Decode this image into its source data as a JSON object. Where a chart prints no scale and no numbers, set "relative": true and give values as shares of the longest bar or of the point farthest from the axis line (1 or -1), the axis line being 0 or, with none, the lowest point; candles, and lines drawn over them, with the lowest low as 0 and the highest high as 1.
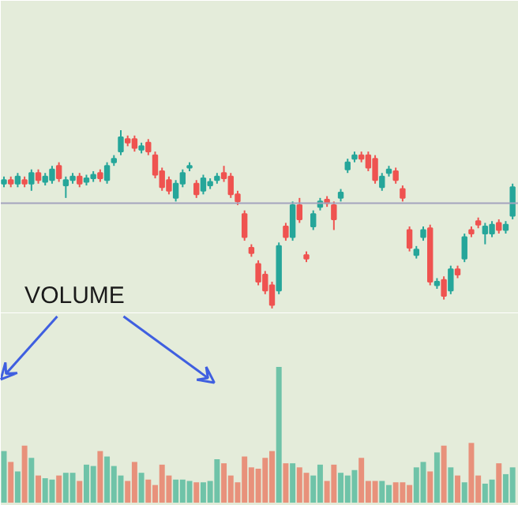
{
  "chart_data": [
    {
      "type": "candlestick",
      "relative": true,
      "categories": [
        null,
        null,
        null,
        null,
        null,
        null,
        null,
        null,
        null,
        null,
        null,
        null,
        null,
        null,
        null,
        null,
        null,
        null,
        null,
        null,
        null,
        null,
        null,
        null,
        null,
        null,
        null,
        null,
        null,
        null,
        null,
        null,
        null,
        null,
        null,
        null,
        null,
        null,
        null,
        null,
        null,
        null,
        null,
        null,
        null,
        null,
        null,
        null,
        null,
        null,
        null,
        null,
        null,
        null,
        null,
        null,
        null,
        null,
        null,
        null,
        null,
        null,
        null,
        null,
        null,
        null,
        null,
        null,
        null,
        null,
        null,
        null,
        null,
        null,
        null
      ],
      "ohlc": [
        [
          0.7,
          0.74,
          0.68,
          0.72
        ],
        [
          0.72,
          0.74,
          0.68,
          0.7
        ],
        [
          0.7,
          0.76,
          0.68,
          0.74
        ],
        [
          0.72,
          0.74,
          0.68,
          0.7
        ],
        [
          0.7,
          0.78,
          0.66,
          0.76
        ],
        [
          0.76,
          0.78,
          0.7,
          0.72
        ],
        [
          0.71,
          0.76,
          0.69,
          0.74
        ],
        [
          0.72,
          0.8,
          0.7,
          0.78
        ],
        [
          0.8,
          0.82,
          0.71,
          0.73
        ],
        [
          0.69,
          0.74,
          0.62,
          0.72
        ],
        [
          0.72,
          0.76,
          0.7,
          0.74
        ],
        [
          0.74,
          0.76,
          0.68,
          0.7
        ],
        [
          0.71,
          0.75,
          0.69,
          0.73
        ],
        [
          0.73,
          0.77,
          0.71,
          0.75
        ],
        [
          0.76,
          0.78,
          0.71,
          0.73
        ],
        [
          0.72,
          0.82,
          0.7,
          0.8
        ],
        [
          0.82,
          0.86,
          0.8,
          0.84
        ],
        [
          0.88,
          1.0,
          0.86,
          0.96
        ],
        [
          0.95,
          0.97,
          0.91,
          0.93
        ],
        [
          0.95,
          0.97,
          0.88,
          0.9
        ],
        [
          0.89,
          0.93,
          0.87,
          0.91
        ],
        [
          0.93,
          0.95,
          0.86,
          0.88
        ],
        [
          0.86,
          0.88,
          0.73,
          0.75
        ],
        [
          0.77,
          0.79,
          0.66,
          0.68
        ],
        [
          0.72,
          0.74,
          0.64,
          0.66
        ],
        [
          0.62,
          0.72,
          0.6,
          0.7
        ],
        [
          0.7,
          0.78,
          0.68,
          0.76
        ],
        [
          0.79,
          0.82,
          0.77,
          0.8
        ],
        [
          0.7,
          0.72,
          0.62,
          0.64
        ],
        [
          0.66,
          0.75,
          0.64,
          0.73
        ],
        [
          0.69,
          0.73,
          0.67,
          0.71
        ],
        [
          0.72,
          0.76,
          0.7,
          0.74
        ],
        [
          0.76,
          0.8,
          0.71,
          0.73
        ],
        [
          0.74,
          0.76,
          0.62,
          0.64
        ],
        [
          0.64,
          0.66,
          0.58,
          0.6
        ],
        [
          0.53,
          0.55,
          0.38,
          0.4
        ],
        [
          0.34,
          0.36,
          0.29,
          0.31
        ],
        [
          0.25,
          0.27,
          0.13,
          0.15
        ],
        [
          0.19,
          0.21,
          0.08,
          0.1
        ],
        [
          0.13,
          0.15,
          0.0,
          0.02
        ],
        [
          0.1,
          0.37,
          0.08,
          0.35
        ],
        [
          0.46,
          0.48,
          0.38,
          0.4
        ],
        [
          0.4,
          0.6,
          0.38,
          0.58
        ],
        [
          0.58,
          0.62,
          0.48,
          0.5
        ],
        [
          0.3,
          0.32,
          0.26,
          0.28
        ],
        [
          0.46,
          0.55,
          0.44,
          0.53
        ],
        [
          0.57,
          0.62,
          0.55,
          0.6
        ],
        [
          0.61,
          0.63,
          0.57,
          0.59
        ],
        [
          0.58,
          0.6,
          0.44,
          0.5
        ],
        [
          0.62,
          0.67,
          0.6,
          0.65
        ],
        [
          0.78,
          0.84,
          0.76,
          0.82
        ],
        [
          0.84,
          0.88,
          0.82,
          0.86
        ],
        [
          0.86,
          0.88,
          0.82,
          0.84
        ],
        [
          0.86,
          0.88,
          0.77,
          0.79
        ],
        [
          0.84,
          0.86,
          0.7,
          0.72
        ],
        [
          0.68,
          0.76,
          0.66,
          0.74
        ],
        [
          0.76,
          0.8,
          0.74,
          0.78
        ],
        [
          0.77,
          0.79,
          0.7,
          0.72
        ],
        [
          0.67,
          0.69,
          0.6,
          0.62
        ],
        [
          0.44,
          0.46,
          0.32,
          0.34
        ],
        [
          0.3,
          0.35,
          0.28,
          0.33
        ],
        [
          0.4,
          0.46,
          0.38,
          0.44
        ],
        [
          0.45,
          0.47,
          0.13,
          0.15
        ],
        [
          0.13,
          0.17,
          0.11,
          0.15
        ],
        [
          0.16,
          0.18,
          0.05,
          0.07
        ],
        [
          0.1,
          0.24,
          0.08,
          0.22
        ],
        [
          0.22,
          0.24,
          0.17,
          0.19
        ],
        [
          0.28,
          0.42,
          0.26,
          0.4
        ],
        [
          0.44,
          0.46,
          0.4,
          0.42
        ],
        [
          0.49,
          0.51,
          0.45,
          0.47
        ],
        [
          0.42,
          0.48,
          0.36,
          0.46
        ],
        [
          0.42,
          0.49,
          0.4,
          0.47
        ],
        [
          0.48,
          0.5,
          0.42,
          0.44
        ],
        [
          0.44,
          0.49,
          0.42,
          0.47
        ],
        [
          0.52,
          0.7,
          0.5,
          0.68
        ]
      ],
      "colors": [
        "#26a69a",
        "#ef5350",
        "#26a69a",
        "#ef5350",
        "#26a69a",
        "#ef5350",
        "#26a69a",
        "#26a69a",
        "#ef5350",
        "#26a69a",
        "#26a69a",
        "#ef5350",
        "#26a69a",
        "#26a69a",
        "#ef5350",
        "#26a69a",
        "#26a69a",
        "#26a69a",
        "#ef5350",
        "#ef5350",
        "#26a69a",
        "#ef5350",
        "#ef5350",
        "#ef5350",
        "#ef5350",
        "#26a69a",
        "#26a69a",
        "#26a69a",
        "#ef5350",
        "#26a69a",
        "#26a69a",
        "#26a69a",
        "#ef5350",
        "#ef5350",
        "#ef5350",
        "#ef5350",
        "#ef5350",
        "#ef5350",
        "#ef5350",
        "#ef5350",
        "#26a69a",
        "#ef5350",
        "#26a69a",
        "#ef5350",
        "#ef5350",
        "#26a69a",
        "#26a69a",
        "#ef5350",
        "#ef5350",
        "#26a69a",
        "#26a69a",
        "#26a69a",
        "#ef5350",
        "#ef5350",
        "#ef5350",
        "#26a69a",
        "#26a69a",
        "#ef5350",
        "#ef5350",
        "#ef5350",
        "#26a69a",
        "#26a69a",
        "#ef5350",
        "#26a69a",
        "#ef5350",
        "#26a69a",
        "#ef5350",
        "#26a69a",
        "#ef5350",
        "#ef5350",
        "#26a69a",
        "#26a69a",
        "#ef5350",
        "#26a69a",
        "#26a69a"
      ],
      "ref_lines": [
        {
          "axis": "y",
          "value": 0.59,
          "color": "#a3a3bd"
        }
      ],
      "annotations": [
        "VOLUME"
      ]
    },
    {
      "type": "bar",
      "relative": true,
      "categories": [
        null,
        null,
        null,
        null,
        null,
        null,
        null,
        null,
        null,
        null,
        null,
        null,
        null,
        null,
        null,
        null,
        null,
        null,
        null,
        null,
        null,
        null,
        null,
        null,
        null,
        null,
        null,
        null,
        null,
        null,
        null,
        null,
        null,
        null,
        null,
        null,
        null,
        null,
        null,
        null,
        null,
        null,
        null,
        null,
        null,
        null,
        null,
        null,
        null,
        null,
        null,
        null,
        null,
        null,
        null,
        null,
        null,
        null,
        null,
        null,
        null,
        null,
        null,
        null,
        null,
        null,
        null,
        null,
        null,
        null,
        null,
        null,
        null,
        null,
        null
      ],
      "values": [
        0.38,
        0.3,
        0.23,
        0.42,
        0.33,
        0.2,
        0.18,
        0.17,
        0.2,
        0.22,
        0.22,
        0.16,
        0.28,
        0.27,
        0.38,
        0.34,
        0.27,
        0.2,
        0.16,
        0.3,
        0.22,
        0.17,
        0.13,
        0.28,
        0.2,
        0.17,
        0.17,
        0.16,
        0.15,
        0.15,
        0.16,
        0.32,
        0.29,
        0.2,
        0.15,
        0.34,
        0.26,
        0.25,
        0.33,
        0.38,
        1.0,
        0.29,
        0.29,
        0.26,
        0.22,
        0.2,
        0.28,
        0.16,
        0.28,
        0.22,
        0.2,
        0.24,
        0.33,
        0.16,
        0.16,
        0.16,
        0.13,
        0.15,
        0.15,
        0.13,
        0.26,
        0.3,
        0.23,
        0.37,
        0.42,
        0.26,
        0.2,
        0.15,
        0.44,
        0.2,
        0.14,
        0.17,
        0.29,
        0.21,
        0.26
      ],
      "colors": [
        "#6fc3a8",
        "#e8917b",
        "#6fc3a8",
        "#e8917b",
        "#6fc3a8",
        "#e8917b",
        "#6fc3a8",
        "#6fc3a8",
        "#e8917b",
        "#6fc3a8",
        "#6fc3a8",
        "#e8917b",
        "#6fc3a8",
        "#6fc3a8",
        "#e8917b",
        "#6fc3a8",
        "#6fc3a8",
        "#6fc3a8",
        "#e8917b",
        "#e8917b",
        "#6fc3a8",
        "#e8917b",
        "#e8917b",
        "#e8917b",
        "#e8917b",
        "#6fc3a8",
        "#6fc3a8",
        "#6fc3a8",
        "#e8917b",
        "#6fc3a8",
        "#6fc3a8",
        "#6fc3a8",
        "#e8917b",
        "#e8917b",
        "#e8917b",
        "#e8917b",
        "#e8917b",
        "#e8917b",
        "#e8917b",
        "#e8917b",
        "#6fc3a8",
        "#e8917b",
        "#6fc3a8",
        "#e8917b",
        "#e8917b",
        "#6fc3a8",
        "#6fc3a8",
        "#e8917b",
        "#e8917b",
        "#6fc3a8",
        "#6fc3a8",
        "#6fc3a8",
        "#e8917b",
        "#e8917b",
        "#e8917b",
        "#6fc3a8",
        "#6fc3a8",
        "#e8917b",
        "#e8917b",
        "#e8917b",
        "#6fc3a8",
        "#6fc3a8",
        "#e8917b",
        "#6fc3a8",
        "#e8917b",
        "#6fc3a8",
        "#e8917b",
        "#6fc3a8",
        "#e8917b",
        "#e8917b",
        "#6fc3a8",
        "#6fc3a8",
        "#e8917b",
        "#6fc3a8",
        "#6fc3a8"
      ]
    }
  ]
}
